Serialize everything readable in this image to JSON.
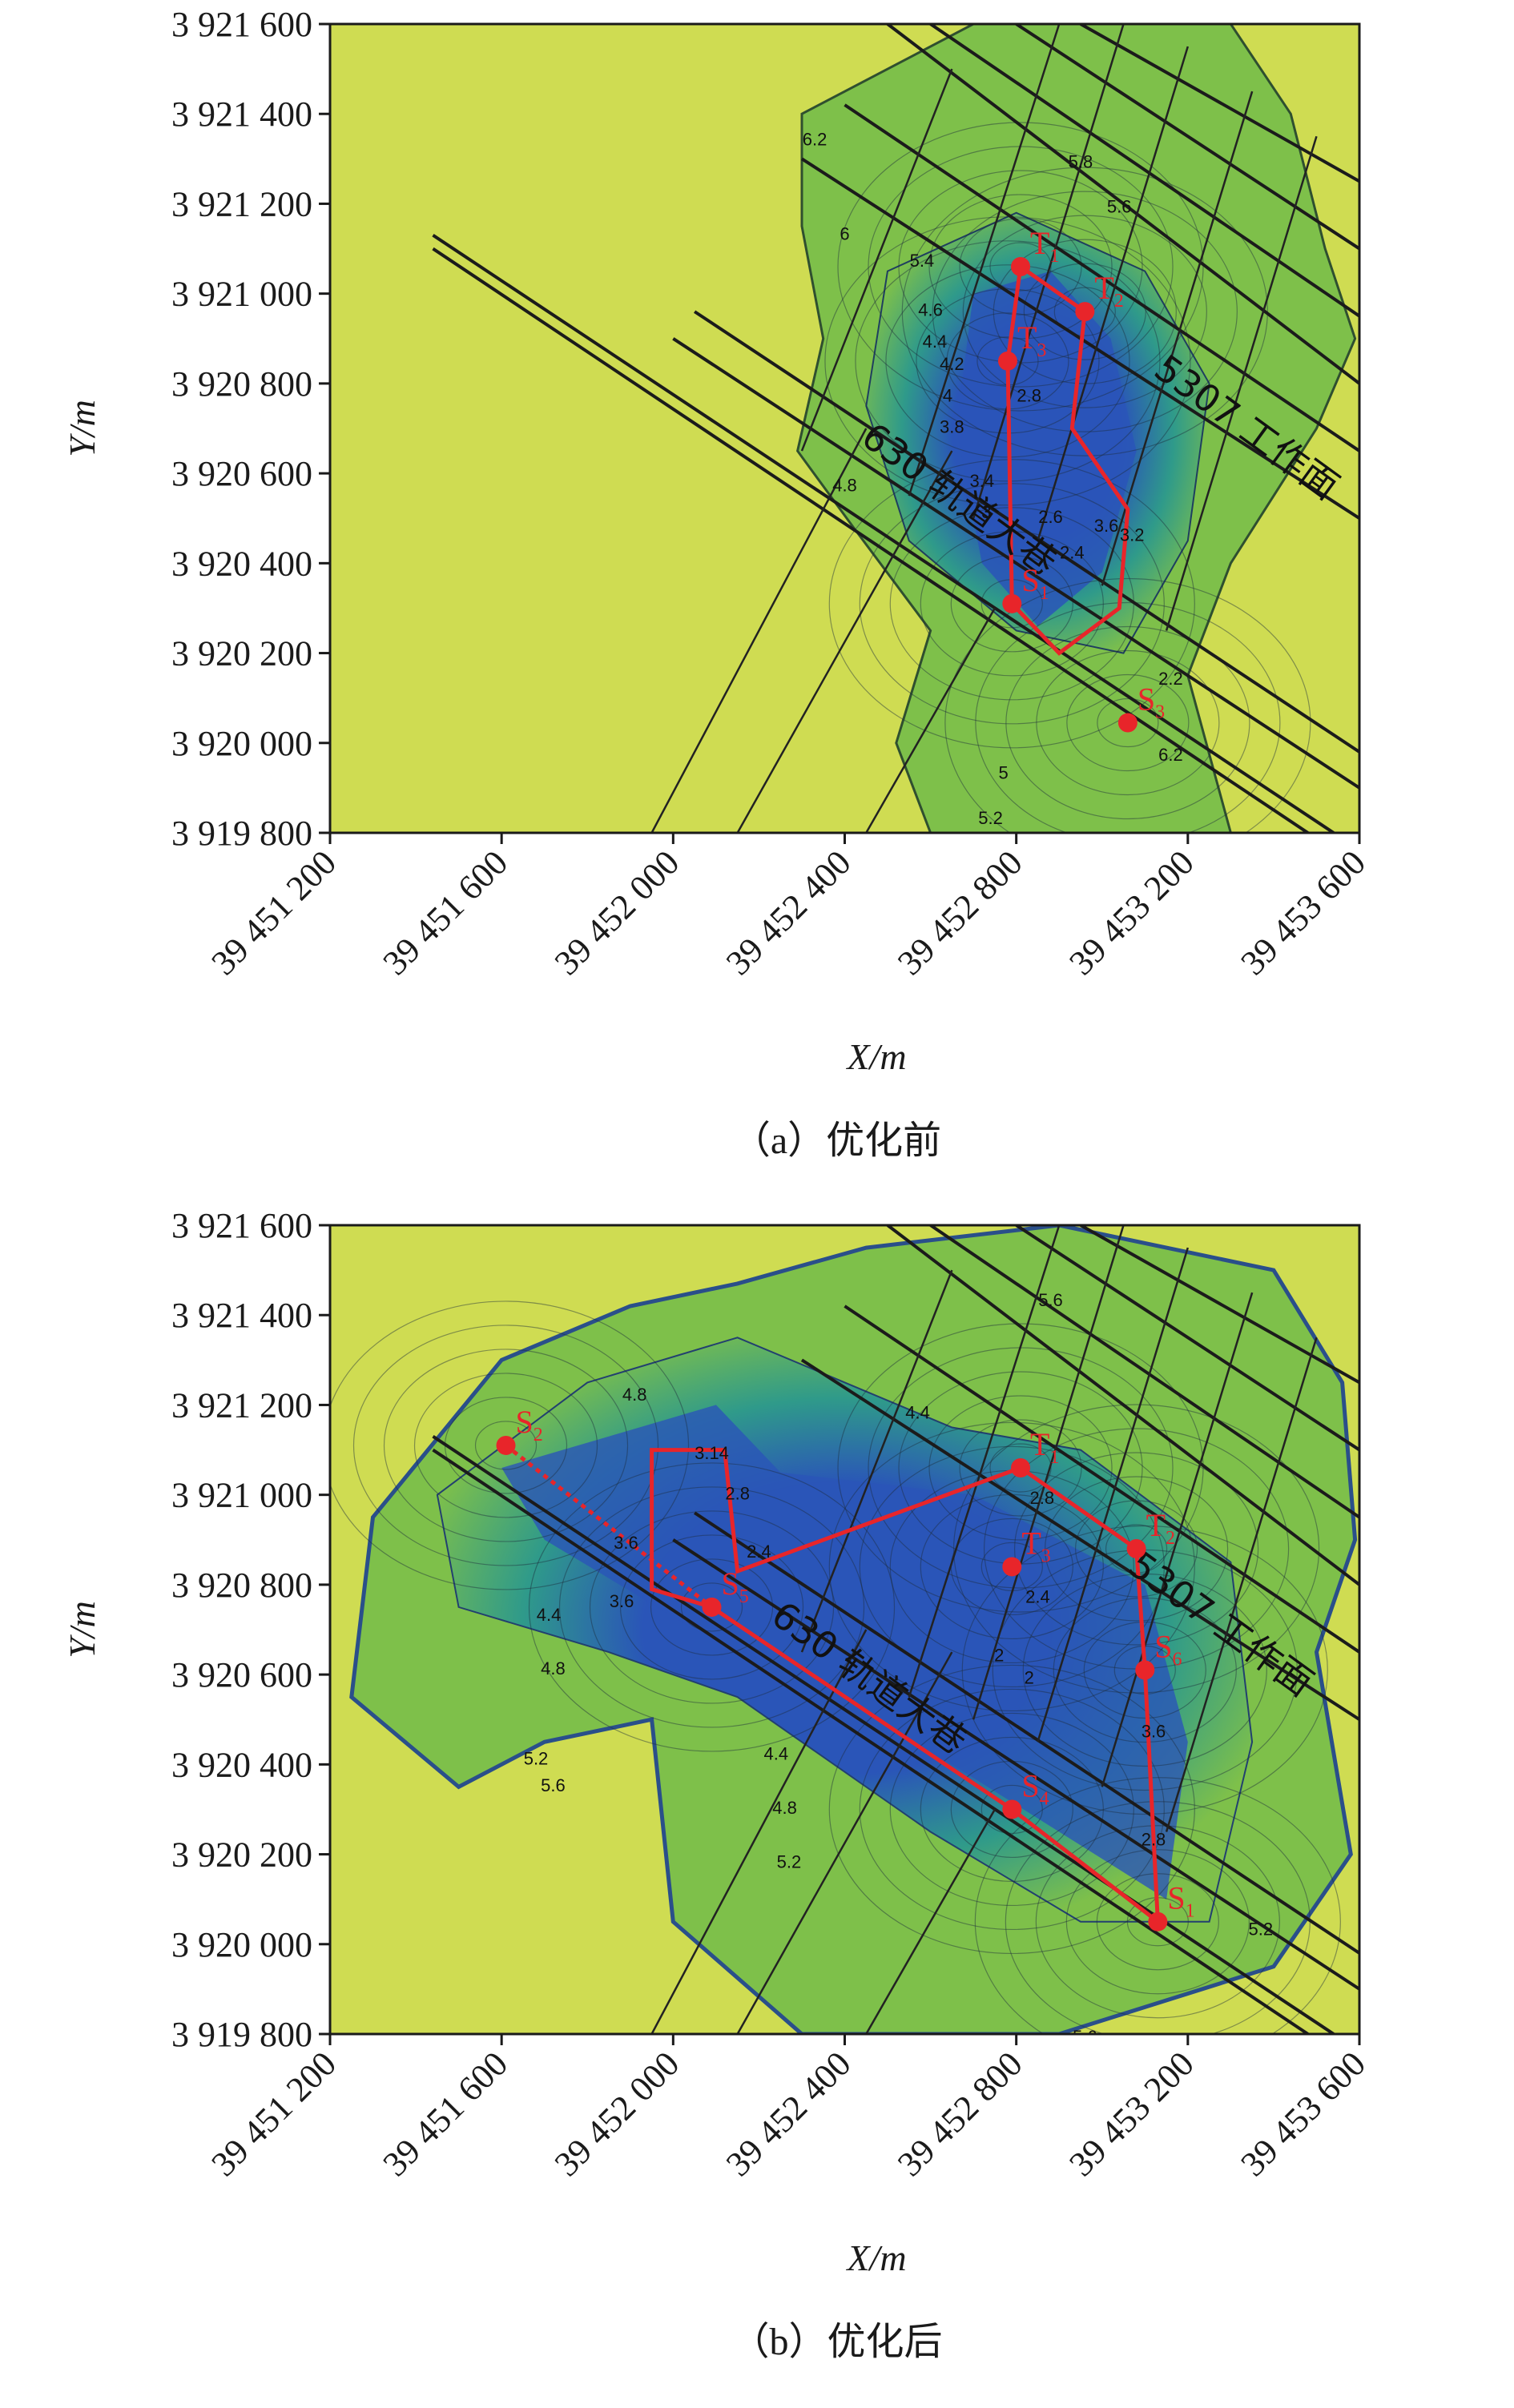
{
  "chart_data": [
    {
      "type": "contour-map",
      "caption": "（a）优化前",
      "xlabel": "X/m",
      "ylabel": "Y/m",
      "xlim": [
        39451200,
        39453600
      ],
      "ylim": [
        3919800,
        3921600
      ],
      "xticks": [
        "39 451 200",
        "39 451 600",
        "39 452 000",
        "39 452 400",
        "39 452 800",
        "39 453 200",
        "39 453 600"
      ],
      "yticks": [
        "3 921 600",
        "3 921 400",
        "3 921 200",
        "3 921 000",
        "3 920 800",
        "3 920 600",
        "3 920 400",
        "3 920 200",
        "3 920 000",
        "3 919 800"
      ],
      "colors": {
        "background": "#cfdc52",
        "outer": "#7ec04a",
        "mid": "#2f9a8a",
        "inner": "#2a55b8"
      },
      "map_labels": [
        "630 轨道大巷",
        "5307 工作面"
      ],
      "points": [
        {
          "label": "T",
          "sub": "1",
          "x": 39452810,
          "y": 3921060
        },
        {
          "label": "T",
          "sub": "2",
          "x": 39452960,
          "y": 3920960
        },
        {
          "label": "T",
          "sub": "3",
          "x": 39452780,
          "y": 3920850
        },
        {
          "label": "S",
          "sub": "1",
          "x": 39452790,
          "y": 3920310
        },
        {
          "label": "S",
          "sub": "3",
          "x": 39453060,
          "y": 3920045
        }
      ],
      "contour_labels": [
        "6.2",
        "5.8",
        "5.6",
        "6",
        "5.4",
        "4.6",
        "4.4",
        "4.2",
        "4",
        "3.8",
        "3.4",
        "3",
        "2.8",
        "2.6",
        "2.4",
        "2.2",
        "3.6",
        "3.2",
        "4.8",
        "5",
        "5.2",
        "6.2"
      ]
    },
    {
      "type": "contour-map",
      "caption": "（b）优化后",
      "xlabel": "X/m",
      "ylabel": "Y/m",
      "xlim": [
        39451200,
        39453600
      ],
      "ylim": [
        3919800,
        3921600
      ],
      "xticks": [
        "39 451 200",
        "39 451 600",
        "39 452 000",
        "39 452 400",
        "39 452 800",
        "39 453 200",
        "39 453 600"
      ],
      "yticks": [
        "3 921 600",
        "3 921 400",
        "3 921 200",
        "3 921 000",
        "3 920 800",
        "3 920 600",
        "3 920 400",
        "3 920 200",
        "3 920 000",
        "3 919 800"
      ],
      "colors": {
        "background": "#cfdc52",
        "outer": "#7ec04a",
        "mid": "#2f9a8a",
        "inner": "#2a55b8"
      },
      "map_labels": [
        "630 轨道大巷",
        "5307 工作面"
      ],
      "points": [
        {
          "label": "S",
          "sub": "2",
          "x": 39451610,
          "y": 3921110
        },
        {
          "label": "T",
          "sub": "1",
          "x": 39452810,
          "y": 3921060
        },
        {
          "label": "T",
          "sub": "2",
          "x": 39453080,
          "y": 3920880
        },
        {
          "label": "T",
          "sub": "3",
          "x": 39452790,
          "y": 3920840
        },
        {
          "label": "S",
          "sub": "5",
          "x": 39452090,
          "y": 3920750
        },
        {
          "label": "S",
          "sub": "6",
          "x": 39453100,
          "y": 3920610
        },
        {
          "label": "S",
          "sub": "4",
          "x": 39452790,
          "y": 3920300
        },
        {
          "label": "S",
          "sub": "1",
          "x": 39453130,
          "y": 3920050
        }
      ],
      "contour_labels": [
        "4.8",
        "4.4",
        "3.14",
        "2.8",
        "3.6",
        "2.4",
        "2",
        "3.6",
        "4.4",
        "4.8",
        "5.2",
        "5.6",
        "5.6",
        "2.8",
        "2.4",
        "2",
        "2.8",
        "3.6",
        "5.2",
        "4.4",
        "4.8",
        "5.2",
        "5.6"
      ]
    }
  ]
}
